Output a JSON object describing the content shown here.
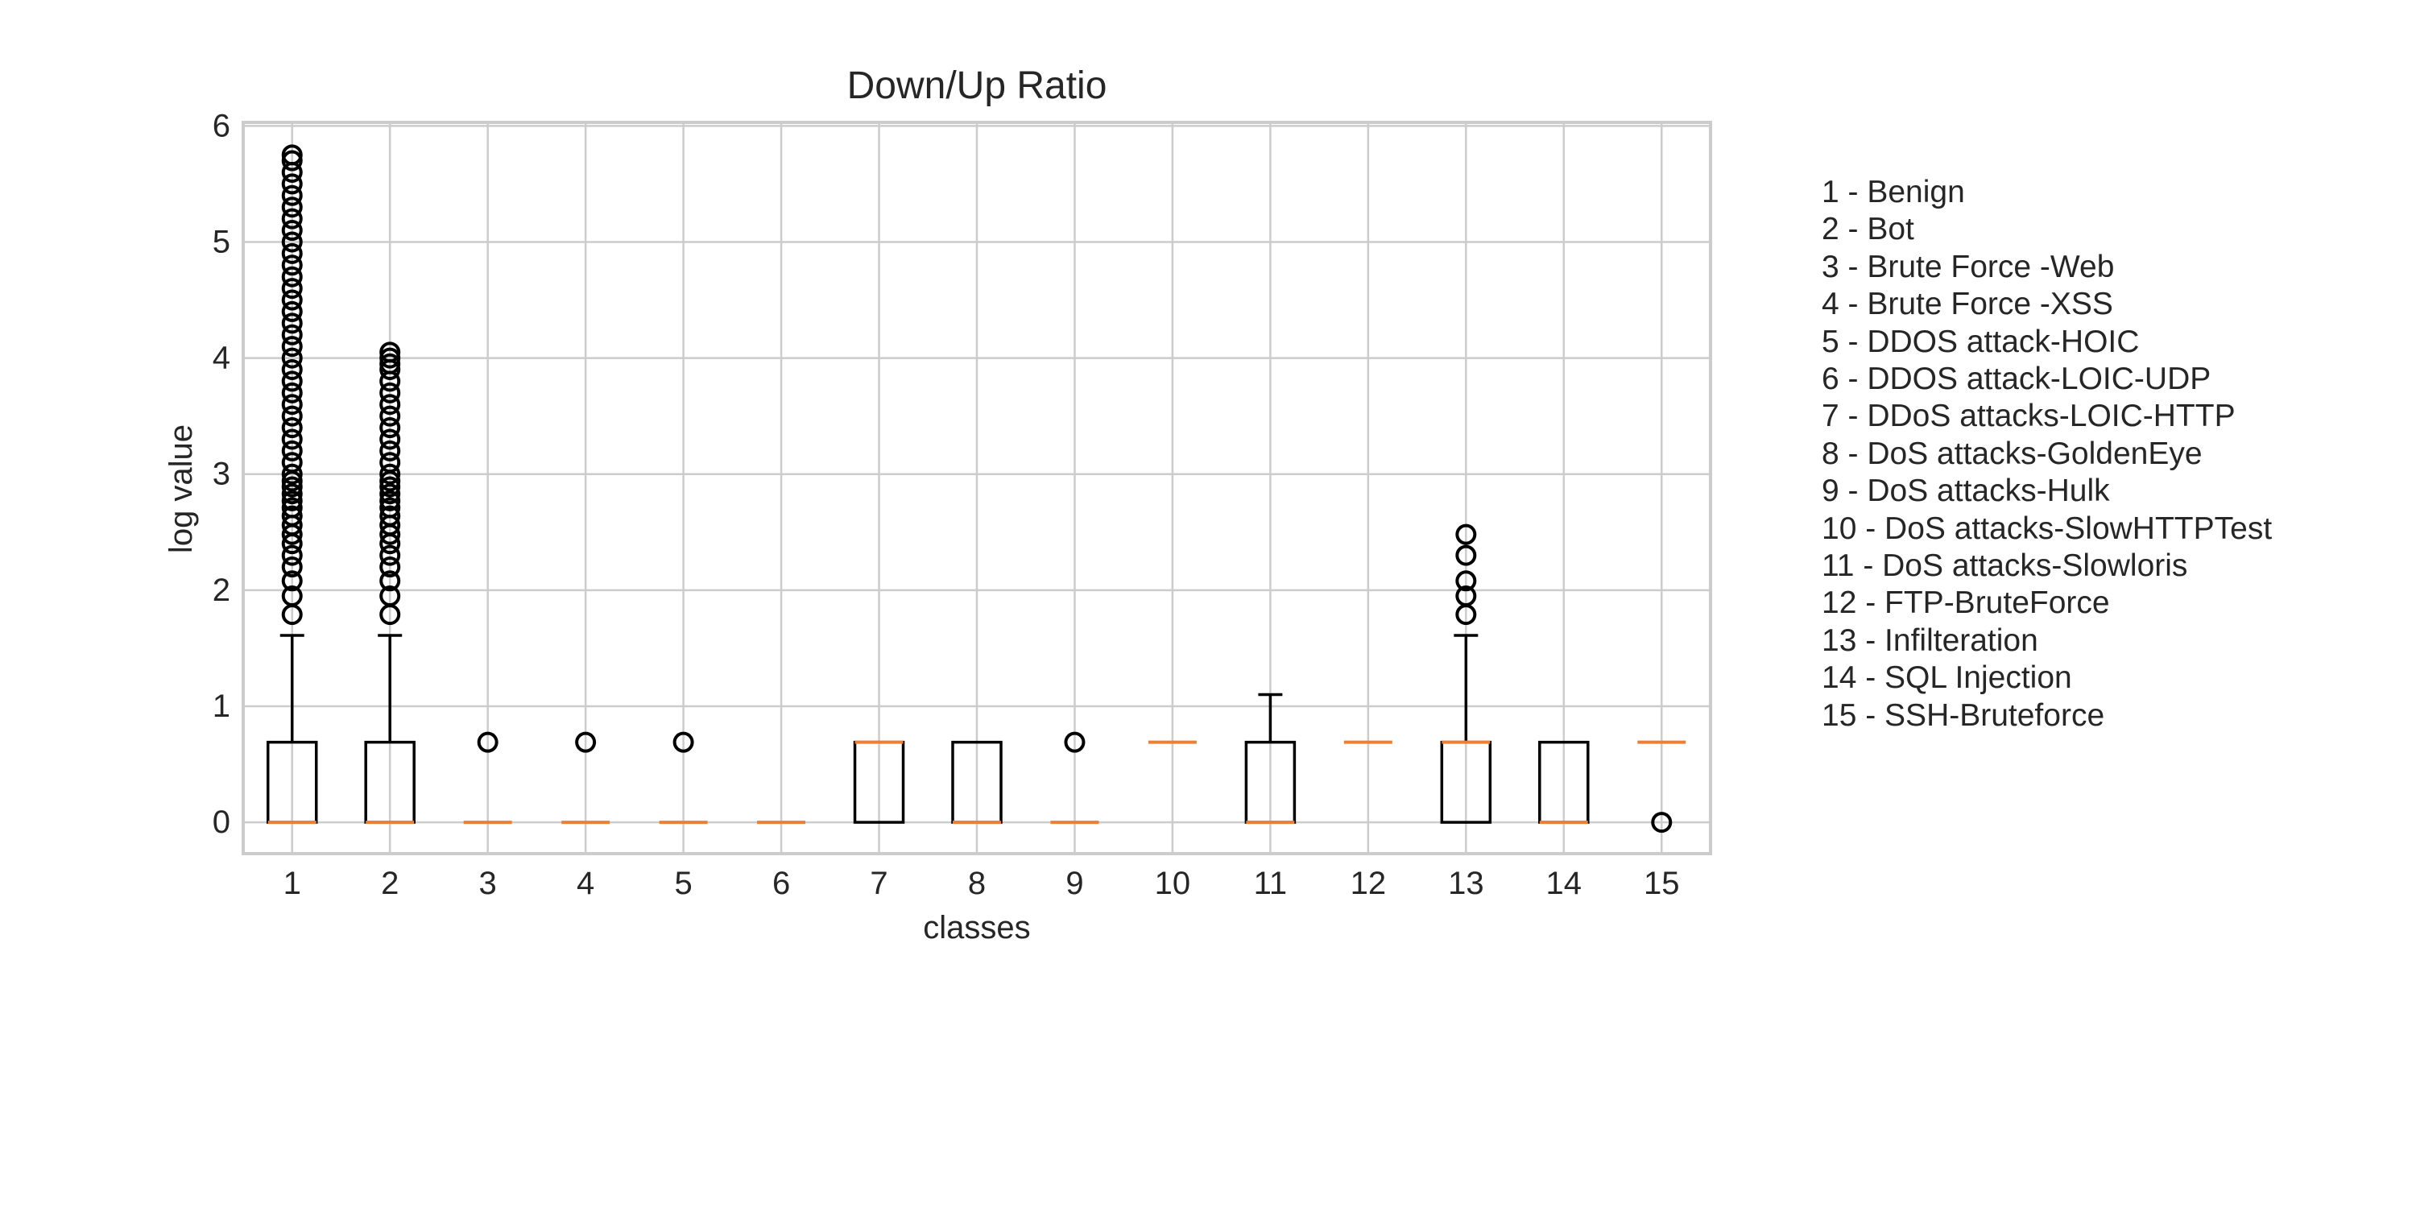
{
  "chart_data": {
    "type": "boxplot",
    "title": "Down/Up Ratio",
    "xlabel": "classes",
    "ylabel": "log value",
    "ylim": [
      -0.27,
      6.03
    ],
    "yticks": [
      0,
      1,
      2,
      3,
      4,
      5,
      6
    ],
    "grid": true,
    "categories": [
      "1",
      "2",
      "3",
      "4",
      "5",
      "6",
      "7",
      "8",
      "9",
      "10",
      "11",
      "12",
      "13",
      "14",
      "15"
    ],
    "boxes": [
      {
        "category": "1",
        "q1": 0,
        "median": 0,
        "q3": 0.69,
        "whisker_low": 0,
        "whisker_high": 1.61,
        "outliers": [
          1.79,
          1.95,
          2.08,
          2.2,
          2.3,
          2.4,
          2.48,
          2.56,
          2.64,
          2.71,
          2.77,
          2.83,
          2.89,
          2.94,
          3.0,
          3.1,
          3.2,
          3.3,
          3.4,
          3.5,
          3.6,
          3.7,
          3.8,
          3.9,
          4.0,
          4.1,
          4.2,
          4.3,
          4.4,
          4.5,
          4.6,
          4.7,
          4.8,
          4.9,
          5.0,
          5.1,
          5.2,
          5.3,
          5.4,
          5.5,
          5.6,
          5.7,
          5.75
        ]
      },
      {
        "category": "2",
        "q1": 0,
        "median": 0,
        "q3": 0.69,
        "whisker_low": 0,
        "whisker_high": 1.61,
        "outliers": [
          1.79,
          1.95,
          2.08,
          2.2,
          2.3,
          2.4,
          2.48,
          2.56,
          2.64,
          2.71,
          2.77,
          2.83,
          2.89,
          2.94,
          3.0,
          3.1,
          3.2,
          3.3,
          3.4,
          3.5,
          3.6,
          3.7,
          3.8,
          3.9,
          3.95,
          4.0,
          4.05
        ]
      },
      {
        "category": "3",
        "q1": 0,
        "median": 0,
        "q3": 0,
        "whisker_low": 0,
        "whisker_high": 0,
        "outliers": [
          0.69
        ]
      },
      {
        "category": "4",
        "q1": 0,
        "median": 0,
        "q3": 0,
        "whisker_low": 0,
        "whisker_high": 0,
        "outliers": [
          0.69
        ]
      },
      {
        "category": "5",
        "q1": 0,
        "median": 0,
        "q3": 0,
        "whisker_low": 0,
        "whisker_high": 0,
        "outliers": [
          0.69
        ]
      },
      {
        "category": "6",
        "q1": 0,
        "median": 0,
        "q3": 0,
        "whisker_low": 0,
        "whisker_high": 0,
        "outliers": []
      },
      {
        "category": "7",
        "q1": 0,
        "median": 0.69,
        "q3": 0.69,
        "whisker_low": 0,
        "whisker_high": 0.69,
        "outliers": []
      },
      {
        "category": "8",
        "q1": 0,
        "median": 0,
        "q3": 0.69,
        "whisker_low": 0,
        "whisker_high": 0.69,
        "outliers": []
      },
      {
        "category": "9",
        "q1": 0,
        "median": 0,
        "q3": 0,
        "whisker_low": 0,
        "whisker_high": 0,
        "outliers": [
          0.69
        ]
      },
      {
        "category": "10",
        "q1": 0.69,
        "median": 0.69,
        "q3": 0.69,
        "whisker_low": 0.69,
        "whisker_high": 0.69,
        "outliers": []
      },
      {
        "category": "11",
        "q1": 0,
        "median": 0,
        "q3": 0.69,
        "whisker_low": 0,
        "whisker_high": 1.1,
        "outliers": []
      },
      {
        "category": "12",
        "q1": 0.69,
        "median": 0.69,
        "q3": 0.69,
        "whisker_low": 0.69,
        "whisker_high": 0.69,
        "outliers": []
      },
      {
        "category": "13",
        "q1": 0,
        "median": 0.69,
        "q3": 0.69,
        "whisker_low": 0,
        "whisker_high": 1.61,
        "outliers": [
          1.79,
          1.95,
          2.08,
          2.3,
          2.48
        ]
      },
      {
        "category": "14",
        "q1": 0,
        "median": 0,
        "q3": 0.69,
        "whisker_low": 0,
        "whisker_high": 0.69,
        "outliers": []
      },
      {
        "category": "15",
        "q1": 0.69,
        "median": 0.69,
        "q3": 0.69,
        "whisker_low": 0.69,
        "whisker_high": 0.69,
        "outliers": [
          0
        ]
      }
    ],
    "legend_position": "right",
    "colors": {
      "box": "#000000",
      "median": "#e8803a",
      "grid": "#cccccc",
      "frame": "#cccccc"
    }
  },
  "legend": {
    "items": [
      "1 - Benign",
      "2 - Bot",
      "3 - Brute Force -Web",
      "4 - Brute Force -XSS",
      "5 - DDOS attack-HOIC",
      "6 - DDOS attack-LOIC-UDP",
      "7 - DDoS attacks-LOIC-HTTP",
      "8 - DoS attacks-GoldenEye",
      "9 - DoS attacks-Hulk",
      "10 - DoS attacks-SlowHTTPTest",
      "11 - DoS attacks-Slowloris",
      "12 - FTP-BruteForce",
      "13 - Infilteration",
      "14 - SQL Injection",
      "15 - SSH-Bruteforce"
    ]
  }
}
